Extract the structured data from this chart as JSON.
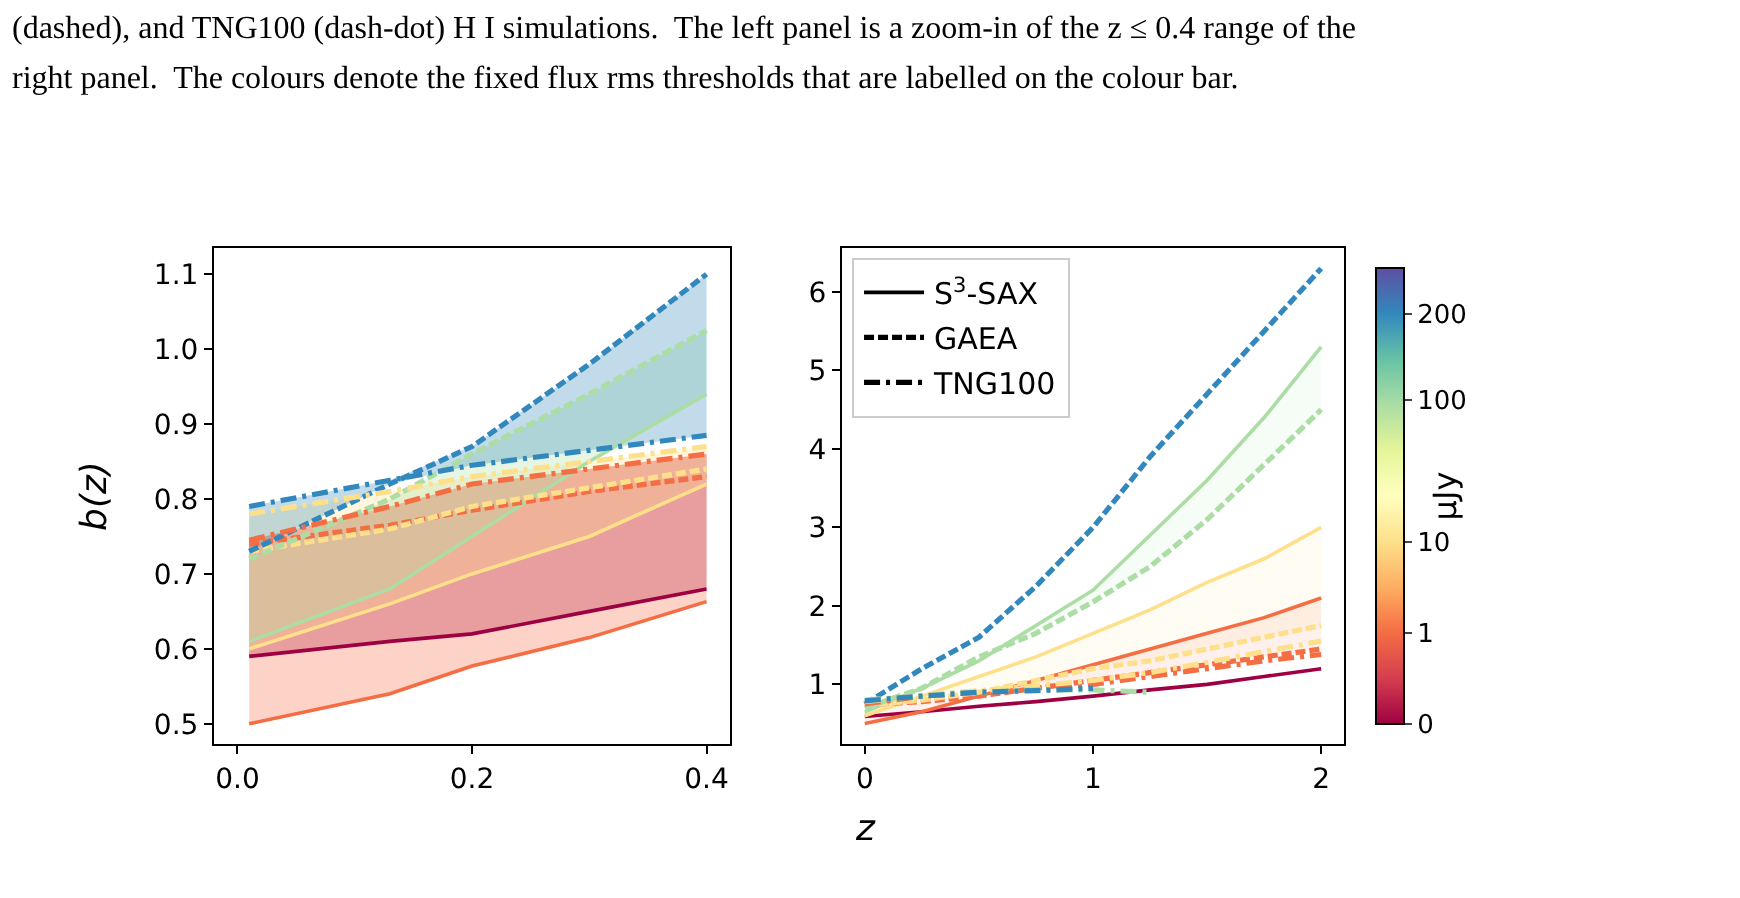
{
  "chart_data": [
    {
      "type": "line",
      "ylabel": "b(z)",
      "annotations": [
        "(dashed), and TNG100 (dash-dot) H I simulations.  The left panel is a zoom-in of the z ≤ 0.4 range of the",
        "right panel.  The colours denote the fixed flux rms thresholds that are labelled on the colour bar."
      ],
      "x": [
        0.01,
        0.13,
        0.2,
        0.3,
        0.4
      ],
      "xlim": [
        -0.02,
        0.42
      ],
      "ylim": [
        0.473,
        1.135
      ],
      "xticks": [
        {
          "value": 0,
          "label": "0.0"
        },
        0.2,
        0.4
      ],
      "yticks": [
        0.5,
        0.6,
        0.7,
        0.8,
        0.9,
        {
          "value": 1.0,
          "label": "1.0"
        },
        1.1
      ],
      "grid": false,
      "legend": false,
      "series": [
        {
          "color": "#9e0142",
          "line_style": "solid",
          "values": [
            0.59,
            0.61,
            0.62,
            0.65,
            0.68
          ],
          "lower": [
            0.59,
            0.61,
            0.62,
            0.65,
            0.68
          ],
          "upper": [
            0.745,
            0.79,
            0.82,
            0.84,
            0.86
          ]
        },
        {
          "color": "#f46d43",
          "line_style": "solid",
          "values": [
            0.5,
            0.54,
            0.577,
            0.615,
            0.663
          ],
          "lower": [
            0.5,
            0.54,
            0.577,
            0.615,
            0.663
          ],
          "upper": [
            0.745,
            0.79,
            0.82,
            0.84,
            0.86
          ]
        },
        {
          "color": "#fee08b",
          "line_style": "solid",
          "values": [
            0.6,
            0.66,
            0.7,
            0.75,
            0.82
          ],
          "lower": [
            0.6,
            0.66,
            0.7,
            0.75,
            0.82
          ],
          "upper": [
            0.78,
            0.81,
            0.83,
            0.85,
            0.87
          ]
        },
        {
          "color": "#abdda4",
          "line_style": "solid",
          "values": [
            0.61,
            0.68,
            0.75,
            0.85,
            0.94
          ],
          "lower": [
            0.61,
            0.68,
            0.75,
            0.85,
            0.94
          ],
          "upper": [
            0.72,
            0.8,
            0.86,
            0.94,
            1.025
          ]
        },
        {
          "color": "#f46d43",
          "line_style": "dashed",
          "values": [
            0.74,
            0.765,
            0.785,
            0.81,
            0.83
          ]
        },
        {
          "color": "#fee08b",
          "line_style": "dashed",
          "values": [
            0.73,
            0.76,
            0.79,
            0.815,
            0.84
          ]
        },
        {
          "color": "#abdda4",
          "line_style": "dashed",
          "values": [
            0.72,
            0.8,
            0.86,
            0.94,
            1.025
          ]
        },
        {
          "color": "#3288bd",
          "line_style": "dashed",
          "values": [
            0.73,
            0.82,
            0.87,
            0.98,
            1.1
          ],
          "lower": [
            0.73,
            0.82,
            0.845,
            0.865,
            0.885
          ],
          "upper": [
            0.79,
            0.825,
            0.87,
            0.98,
            1.1
          ]
        },
        {
          "color": "#f46d43",
          "line_style": "dashdot",
          "values": [
            0.745,
            0.79,
            0.82,
            0.84,
            0.86
          ]
        },
        {
          "color": "#fee08b",
          "line_style": "dashdot",
          "values": [
            0.78,
            0.81,
            0.83,
            0.85,
            0.87
          ]
        },
        {
          "color": "#3288bd",
          "line_style": "dashdot",
          "values": [
            0.79,
            0.825,
            0.845,
            0.865,
            0.885
          ]
        }
      ]
    },
    {
      "type": "line",
      "xlabel": "z",
      "clabel": "μJy",
      "x": [
        0,
        0.25,
        0.5,
        0.75,
        1.0,
        1.25,
        1.5,
        1.75,
        2.0
      ],
      "xlim": [
        -0.1,
        2.1
      ],
      "ylim": [
        0.24,
        6.56
      ],
      "xticks": [
        0,
        1,
        2
      ],
      "yticks": [
        1,
        2,
        3,
        4,
        5,
        6
      ],
      "annotations": [
        "0",
        "1",
        "10",
        "100",
        "200"
      ],
      "grid": false,
      "legend": "top left",
      "series": [
        {
          "name": "S$^{3}$-SAX",
          "color": "#000000",
          "line_style": "solid",
          "values": [
            null,
            null,
            null,
            null,
            null,
            null,
            null,
            null,
            null
          ]
        },
        {
          "name": "GAEA",
          "color": "#000000",
          "line_style": "dashed",
          "values": [
            null,
            null,
            null,
            null,
            null,
            null,
            null,
            null,
            null
          ]
        },
        {
          "name": "TNG100",
          "color": "#000000",
          "line_style": "dashdot",
          "values": [
            null,
            null,
            null,
            null,
            null,
            null,
            null,
            null,
            null
          ]
        },
        {
          "color": "#9e0142",
          "line_style": "solid",
          "values": [
            0.59,
            0.65,
            0.72,
            0.78,
            0.85,
            0.93,
            1.0,
            1.1,
            1.2
          ]
        },
        {
          "color": "#f46d43",
          "line_style": "solid",
          "values": [
            0.5,
            0.65,
            0.85,
            1.05,
            1.25,
            1.45,
            1.65,
            1.85,
            2.1
          ],
          "lower": [
            0.74,
            0.78,
            0.85,
            0.95,
            1.05,
            1.15,
            1.25,
            1.35,
            1.45
          ],
          "upper": [
            0.5,
            0.65,
            0.85,
            1.05,
            1.25,
            1.45,
            1.65,
            1.85,
            2.1
          ]
        },
        {
          "color": "#fee08b",
          "line_style": "solid",
          "values": [
            0.6,
            0.85,
            1.1,
            1.35,
            1.65,
            1.95,
            2.3,
            2.6,
            3.0
          ],
          "lower": [
            0.73,
            0.8,
            0.9,
            1.05,
            1.2,
            1.3,
            1.45,
            1.6,
            1.75
          ],
          "upper": [
            0.6,
            0.85,
            1.1,
            1.35,
            1.65,
            1.95,
            2.3,
            2.6,
            3.0
          ]
        },
        {
          "color": "#abdda4",
          "line_style": "solid",
          "values": [
            0.65,
            0.95,
            1.3,
            1.75,
            2.2,
            2.9,
            3.6,
            4.4,
            5.3
          ],
          "lower": [
            0.7,
            0.95,
            1.35,
            1.65,
            2.05,
            2.5,
            3.1,
            3.8,
            4.5
          ],
          "upper": [
            0.65,
            0.95,
            1.3,
            1.75,
            2.2,
            2.9,
            3.6,
            4.4,
            5.3
          ]
        },
        {
          "color": "#f46d43",
          "line_style": "dashed",
          "values": [
            0.74,
            0.78,
            0.85,
            0.95,
            1.05,
            1.15,
            1.25,
            1.35,
            1.45
          ]
        },
        {
          "color": "#fee08b",
          "line_style": "dashed",
          "values": [
            0.73,
            0.8,
            0.9,
            1.05,
            1.2,
            1.3,
            1.45,
            1.6,
            1.75
          ]
        },
        {
          "color": "#abdda4",
          "line_style": "dashed",
          "values": [
            0.7,
            0.95,
            1.35,
            1.65,
            2.05,
            2.5,
            3.1,
            3.8,
            4.5
          ]
        },
        {
          "color": "#3288bd",
          "line_style": "dashed",
          "values": [
            0.75,
            1.2,
            1.6,
            2.25,
            3.0,
            3.9,
            4.7,
            5.5,
            6.3
          ]
        },
        {
          "color": "#f46d43",
          "line_style": "dashdot",
          "values": [
            0.75,
            0.85,
            0.9,
            0.95,
            1.0,
            1.1,
            1.2,
            1.3,
            1.38
          ]
        },
        {
          "color": "#fee08b",
          "line_style": "dashdot",
          "values": [
            0.78,
            0.86,
            0.92,
            0.98,
            1.05,
            1.15,
            1.28,
            1.42,
            1.55
          ]
        },
        {
          "color": "#abdda4",
          "line_style": "dashdot",
          "x": [
            0,
            0.25,
            0.5,
            0.75,
            1.0,
            1.25
          ],
          "values": [
            0.8,
            0.85,
            0.9,
            0.93,
            0.93,
            0.9
          ]
        },
        {
          "color": "#3288bd",
          "line_style": "dashdot",
          "x": [
            0,
            0.25,
            0.5,
            0.75,
            1.0
          ],
          "values": [
            0.79,
            0.85,
            0.9,
            0.92,
            0.95
          ]
        }
      ]
    }
  ]
}
